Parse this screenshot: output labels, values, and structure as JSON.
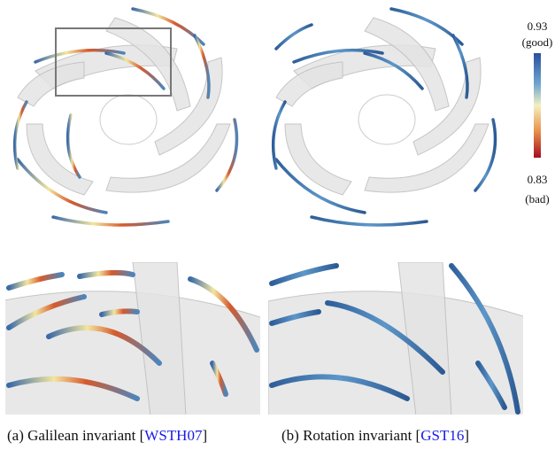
{
  "colorbar": {
    "top_value": "0.93",
    "top_label": "(good)",
    "bottom_value": "0.83",
    "bottom_label": "(bad)"
  },
  "captions": [
    {
      "text": "(a) Galilean invariant [",
      "cite": "WSTH07",
      "close": "]"
    },
    {
      "text": "(b) Rotation invariant [",
      "cite": "GST16",
      "close": "]"
    }
  ]
}
